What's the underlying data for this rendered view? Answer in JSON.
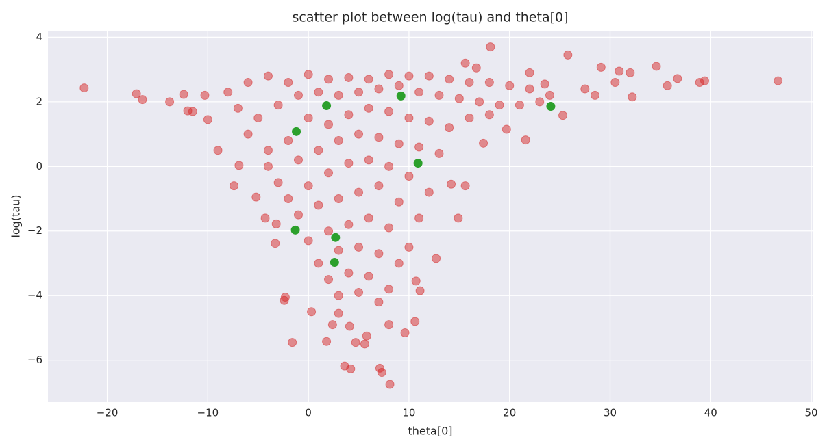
{
  "chart_data": {
    "type": "scatter",
    "title": "scatter plot between log(tau) and theta[0]",
    "x_label": "theta[0]",
    "y_label": "log(tau)",
    "xlim": [
      -25.9,
      50.2
    ],
    "ylim": [
      -7.3,
      4.2
    ],
    "xticks": [
      {
        "value": -20,
        "label": "−20"
      },
      {
        "value": -10,
        "label": "−10"
      },
      0,
      10,
      20,
      30,
      40,
      50
    ],
    "yticks": [
      {
        "value": -6,
        "label": "−6"
      },
      {
        "value": -4,
        "label": "−4"
      },
      {
        "value": -2,
        "label": "−2"
      },
      0,
      2,
      4
    ],
    "grid": true,
    "background": "#eaeaf2",
    "series": [
      {
        "color": "#d62728",
        "alpha": 0.5,
        "x": [
          -22.3,
          -17.1,
          -16.5,
          -13.8,
          -12.4,
          -12,
          -11.5,
          -10.3,
          -10,
          -9,
          -7.4,
          -6.9,
          -5.2,
          -4.3,
          -3.2,
          -3.3,
          -2.3,
          -2.4,
          -1.6,
          0.3,
          1.8,
          2.4,
          3.0,
          3.6,
          4.2,
          4.1,
          4.7,
          5.6,
          5.8,
          7.1,
          7.3,
          8.1,
          8.0,
          9.6,
          10.6,
          11.1,
          10.7,
          12.7,
          14.9,
          15.6,
          14.2,
          17.4,
          19.7,
          21.6,
          25.3,
          25.8,
          28.5,
          29.1,
          30.9,
          32.2,
          34.6,
          35.7,
          36.7,
          38.9,
          39.4,
          46.7,
          18.1,
          15.6,
          16.7,
          30.5,
          27.5,
          23.5,
          22,
          32,
          -8,
          -6,
          -4,
          -2,
          0,
          2,
          4,
          6,
          8,
          10,
          12,
          14,
          16,
          18,
          20,
          22,
          24,
          -7,
          -5,
          -3,
          -1,
          1,
          3,
          5,
          7,
          9,
          11,
          13,
          15,
          17,
          19,
          21,
          23,
          -6,
          -4,
          -2,
          0,
          2,
          4,
          6,
          8,
          10,
          12,
          14,
          16,
          18,
          -4,
          -3,
          -1,
          1,
          3,
          5,
          7,
          9,
          11,
          13,
          -2,
          0,
          2,
          4,
          6,
          8,
          10,
          12,
          -1,
          1,
          3,
          5,
          7,
          9,
          11,
          0,
          2,
          4,
          6,
          8,
          10,
          1,
          3,
          5,
          7,
          9,
          2,
          4,
          6,
          8,
          3,
          5,
          7
        ],
        "values": [
          2.43,
          2.25,
          2.07,
          2.0,
          2.23,
          1.72,
          1.7,
          2.2,
          1.45,
          0.5,
          -0.6,
          0.03,
          -0.95,
          -1.6,
          -1.78,
          -2.38,
          -4.05,
          -4.15,
          -5.45,
          -4.5,
          -5.42,
          -4.9,
          -4.55,
          -6.18,
          -6.27,
          -4.95,
          -5.45,
          -5.5,
          -5.25,
          -6.25,
          -6.38,
          -6.75,
          -4.9,
          -5.15,
          -4.8,
          -3.85,
          -3.55,
          -2.85,
          -1.6,
          -0.6,
          -0.55,
          0.72,
          1.15,
          0.82,
          1.58,
          3.45,
          2.2,
          3.07,
          2.95,
          2.15,
          3.1,
          2.5,
          2.72,
          2.6,
          2.65,
          2.65,
          3.7,
          3.2,
          3.05,
          2.6,
          2.4,
          2.55,
          2.9,
          2.9,
          2.3,
          2.6,
          2.8,
          2.6,
          2.85,
          2.7,
          2.75,
          2.7,
          2.85,
          2.8,
          2.8,
          2.7,
          2.6,
          2.6,
          2.5,
          2.4,
          2.2,
          1.8,
          1.5,
          1.9,
          2.2,
          2.3,
          2.2,
          2.3,
          2.4,
          2.5,
          2.3,
          2.2,
          2.1,
          2.0,
          1.9,
          1.9,
          2.0,
          1.0,
          0.5,
          0.8,
          1.5,
          1.3,
          1.6,
          1.8,
          1.7,
          1.5,
          1.4,
          1.2,
          1.5,
          1.6,
          0.0,
          -0.5,
          0.2,
          0.5,
          0.8,
          1.0,
          0.9,
          0.7,
          0.6,
          0.4,
          -1.0,
          -0.6,
          -0.2,
          0.1,
          0.2,
          0.0,
          -0.3,
          -0.8,
          -1.5,
          -1.2,
          -1.0,
          -0.8,
          -0.6,
          -1.1,
          -1.6,
          -2.3,
          -2.0,
          -1.8,
          -1.6,
          -1.9,
          -2.5,
          -3.0,
          -2.6,
          -2.5,
          -2.7,
          -3.0,
          -3.5,
          -3.3,
          -3.4,
          -3.8,
          -4.0,
          -3.9,
          -4.2
        ]
      },
      {
        "color": "#2ca02c",
        "alpha": 1,
        "x": [
          -1.2,
          1.8,
          9.2,
          24.1,
          10.9,
          -1.3,
          2.7,
          2.6
        ],
        "values": [
          1.08,
          1.88,
          2.18,
          1.86,
          0.1,
          -1.97,
          -2.2,
          -2.97
        ]
      }
    ]
  }
}
